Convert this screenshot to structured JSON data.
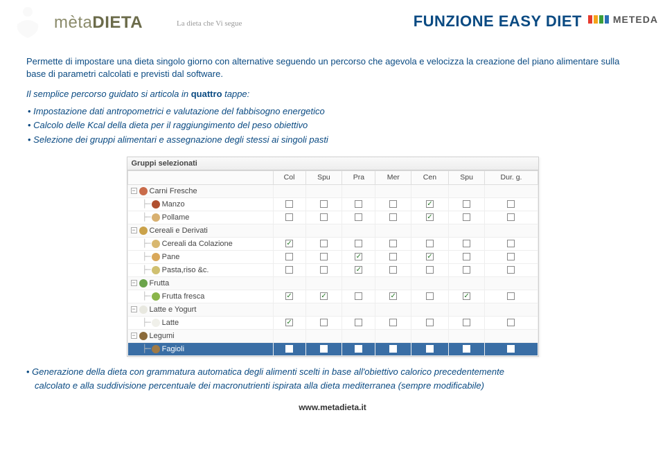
{
  "header": {
    "brand_left": "mèta",
    "brand_right": "DIETA",
    "tagline": "La dieta che Vi segue",
    "title": "FUNZIONE EASY DIET",
    "meteda": "METEDA",
    "meteda_colors": [
      "#e63b2e",
      "#f5a31a",
      "#3b9e3b",
      "#2b6fb5"
    ]
  },
  "intro": "Permette di impostare una dieta singolo giorno con alternative seguendo un percorso che agevola e velocizza la creazione del piano alimentare sulla base di parametri calcolati e previsti dal software.",
  "subintro_pre": "Il semplice percorso guidato si articola in ",
  "subintro_bold": "quattro",
  "subintro_post": " tappe:",
  "bullets": [
    "Impostazione dati antropometrici e valutazione del fabbisogno energetico",
    "Calcolo delle Kcal della dieta per il raggiungimento del peso obiettivo",
    "Selezione dei gruppi alimentari e assegnazione degli stessi ai singoli pasti"
  ],
  "panel": {
    "title": "Gruppi selezionati",
    "columns": [
      "",
      "Col",
      "Spu",
      "Pra",
      "Mer",
      "Cen",
      "Spu",
      "Dur. g."
    ],
    "rows": [
      {
        "type": "group",
        "label": "Carni Fresche",
        "icon": "#c96b4a"
      },
      {
        "type": "item",
        "label": "Manzo",
        "icon": "#b05030",
        "checks": [
          false,
          false,
          false,
          false,
          true,
          false,
          false
        ]
      },
      {
        "type": "item",
        "label": "Pollame",
        "icon": "#d8b070",
        "checks": [
          false,
          false,
          false,
          false,
          true,
          false,
          false
        ]
      },
      {
        "type": "group",
        "label": "Cereali e Derivati",
        "icon": "#caa24a"
      },
      {
        "type": "item",
        "label": "Cereali da Colazione",
        "icon": "#d8b870",
        "checks": [
          true,
          false,
          false,
          false,
          false,
          false,
          false
        ]
      },
      {
        "type": "item",
        "label": "Pane",
        "icon": "#d9a85a",
        "checks": [
          false,
          false,
          true,
          false,
          true,
          false,
          false
        ]
      },
      {
        "type": "item",
        "label": "Pasta,riso &c.",
        "icon": "#d0c070",
        "checks": [
          false,
          false,
          true,
          false,
          false,
          false,
          false
        ]
      },
      {
        "type": "group",
        "label": "Frutta",
        "icon": "#6aa34a"
      },
      {
        "type": "item",
        "label": "Frutta fresca",
        "icon": "#8ab54a",
        "checks": [
          true,
          true,
          false,
          true,
          false,
          true,
          false
        ]
      },
      {
        "type": "group",
        "label": "Latte e Yogurt",
        "icon": "#e8e8e0"
      },
      {
        "type": "item",
        "label": "Latte",
        "icon": "#f0f0ea",
        "checks": [
          true,
          false,
          false,
          false,
          false,
          false,
          false
        ]
      },
      {
        "type": "group",
        "label": "Legumi",
        "icon": "#8a6a3a"
      },
      {
        "type": "item",
        "label": "Fagioli",
        "icon": "#a07a45",
        "selected": true,
        "checks": [
          false,
          false,
          false,
          false,
          true,
          false,
          false
        ]
      }
    ]
  },
  "footer_bullet_lead": "Generazione della dieta",
  "footer_bullet_rest": "  con grammatura automatica degli alimenti scelti in base all'obiettivo calorico precedentemente",
  "footer_bullet_cont": "calcolato e alla suddivisione percentuale dei macronutrienti ispirata alla dieta mediterranea (sempre modificabile)",
  "site": "www.metadieta.it",
  "colors": {
    "primary_text": "#0a4a82"
  }
}
